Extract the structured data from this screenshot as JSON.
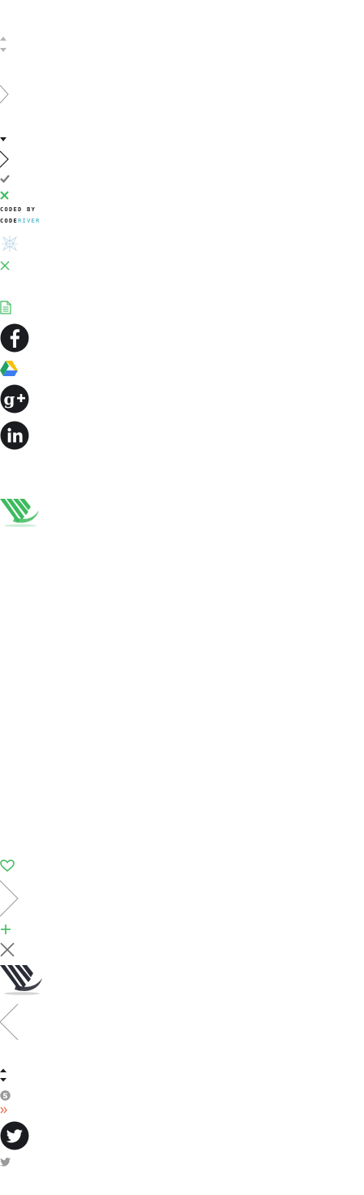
{
  "sprite_sheet": {
    "credit": {
      "line1": "CODED BY",
      "line2_a": "CODE",
      "line2_b": "RIVER"
    },
    "icons": [
      "sort-arrows-icon",
      "chevron-right-icon",
      "caret-down-icon",
      "chevron-right-icon",
      "checkmark-icon",
      "close-icon",
      "snowflake-logo-icon",
      "close-icon",
      "document-icon",
      "facebook-icon",
      "google-drive-icon",
      "google-plus-icon",
      "linkedin-icon",
      "brand-v-logo",
      "heart-icon",
      "chevron-right-icon",
      "plus-icon",
      "close-icon",
      "brand-v-logo",
      "chevron-left-icon",
      "sort-arrows-icon",
      "skype-icon",
      "double-chevron-right-icon",
      "twitter-icon",
      "twitter-icon"
    ],
    "colors": {
      "green": "#3dbb5e",
      "dark": "#1b1c20",
      "grey": "#9a9a9a",
      "light_grey": "#cfcfcf",
      "accent_blue": "#27a3c4",
      "orange": "#e8623a"
    }
  }
}
